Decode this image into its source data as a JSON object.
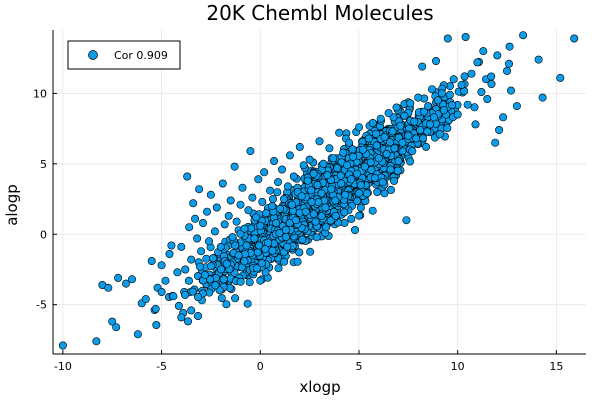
{
  "chart_data": {
    "type": "scatter",
    "title": "20K Chembl Molecules",
    "xlabel": "xlogp",
    "ylabel": "alogp",
    "xlim": [
      -10.5,
      16.5
    ],
    "ylim": [
      -8.5,
      14.5
    ],
    "xticks": [
      -10,
      -5,
      0,
      5,
      10,
      15
    ],
    "yticks": [
      -5,
      0,
      5,
      10
    ],
    "xtick_labels": [
      "-10",
      "-5",
      "0",
      "5",
      "10",
      "15"
    ],
    "ytick_labels": [
      "-5",
      "0",
      "5",
      "10"
    ],
    "grid": true,
    "legend_position": "top-left",
    "marker_color": "#0a9ce8",
    "marker_edge_color": "#000000",
    "series": [
      {
        "name": "Cor 0.909",
        "points": [
          [
            -10.0,
            -7.9
          ],
          [
            -8.3,
            -7.6
          ],
          [
            -8.0,
            -3.6
          ],
          [
            -7.7,
            -3.8
          ],
          [
            -7.5,
            -6.2
          ],
          [
            -7.3,
            -6.6
          ],
          [
            -7.2,
            -3.1
          ],
          [
            -6.8,
            -3.5
          ],
          [
            -6.5,
            -3.2
          ],
          [
            -6.2,
            -7.1
          ],
          [
            -6.0,
            -4.9
          ],
          [
            -5.8,
            -4.6
          ],
          [
            -5.5,
            -1.9
          ],
          [
            -5.3,
            -5.3
          ],
          [
            -5.2,
            -3.8
          ],
          [
            -5.0,
            -4.1
          ],
          [
            -5.0,
            -2.2
          ],
          [
            -4.8,
            -3.3
          ],
          [
            -4.6,
            -1.4
          ],
          [
            -4.5,
            -0.8
          ],
          [
            -4.4,
            -4.4
          ],
          [
            -4.2,
            -2.7
          ],
          [
            -4.0,
            -5.9
          ],
          [
            -4.0,
            -0.9
          ],
          [
            -3.8,
            -2.5
          ],
          [
            -3.7,
            4.1
          ],
          [
            -3.6,
            0.5
          ],
          [
            -3.5,
            -1.8
          ],
          [
            -3.4,
            2.2
          ],
          [
            -3.3,
            1.1
          ],
          [
            -3.2,
            -0.3
          ],
          [
            -3.1,
            3.2
          ],
          [
            -3.0,
            -1.2
          ],
          [
            -2.9,
            0.8
          ],
          [
            -2.8,
            -2.9
          ],
          [
            -2.7,
            1.6
          ],
          [
            -2.6,
            -0.5
          ],
          [
            -2.5,
            2.8
          ],
          [
            -2.4,
            -1.7
          ],
          [
            -2.3,
            0.2
          ],
          [
            -2.2,
            1.9
          ],
          [
            -2.0,
            -0.9
          ],
          [
            -1.9,
            3.6
          ],
          [
            -1.8,
            0.7
          ],
          [
            -1.7,
            -2.1
          ],
          [
            -1.6,
            1.3
          ],
          [
            -1.5,
            2.4
          ],
          [
            -1.4,
            -0.2
          ],
          [
            -1.3,
            4.8
          ],
          [
            -1.2,
            0.9
          ],
          [
            -1.1,
            -1.5
          ],
          [
            -1.0,
            2.1
          ],
          [
            -0.9,
            3.3
          ],
          [
            -0.8,
            0.4
          ],
          [
            -0.7,
            -0.8
          ],
          [
            -0.6,
            1.7
          ],
          [
            -0.5,
            5.9
          ],
          [
            -0.4,
            2.6
          ],
          [
            -0.3,
            -0.3
          ],
          [
            -0.2,
            1.2
          ],
          [
            -0.1,
            3.9
          ],
          [
            0.0,
            0.6
          ],
          [
            0.0,
            -3.3
          ],
          [
            0.1,
            2.3
          ],
          [
            0.2,
            4.4
          ],
          [
            0.3,
            1.5
          ],
          [
            0.4,
            -0.6
          ],
          [
            0.5,
            3.1
          ],
          [
            0.6,
            2.0
          ],
          [
            0.7,
            5.2
          ],
          [
            0.8,
            0.8
          ],
          [
            0.9,
            3.7
          ],
          [
            1.0,
            1.8
          ],
          [
            1.1,
            4.6
          ],
          [
            1.2,
            2.5
          ],
          [
            1.3,
            0.3
          ],
          [
            1.4,
            3.4
          ],
          [
            1.5,
            5.6
          ],
          [
            1.6,
            2.1
          ],
          [
            1.7,
            4.1
          ],
          [
            1.8,
            1.0
          ],
          [
            1.9,
            3.0
          ],
          [
            2.0,
            6.2
          ],
          [
            2.1,
            2.7
          ],
          [
            2.2,
            4.9
          ],
          [
            2.3,
            1.6
          ],
          [
            2.4,
            3.8
          ],
          [
            2.5,
            5.3
          ],
          [
            2.6,
            2.3
          ],
          [
            2.7,
            4.3
          ],
          [
            2.8,
            0.9
          ],
          [
            2.9,
            3.5
          ],
          [
            3.0,
            6.6
          ],
          [
            3.1,
            2.9
          ],
          [
            3.2,
            5.0
          ],
          [
            3.3,
            1.9
          ],
          [
            3.4,
            4.2
          ],
          [
            3.5,
            6.1
          ],
          [
            3.6,
            3.2
          ],
          [
            3.7,
            5.4
          ],
          [
            3.8,
            2.4
          ],
          [
            3.9,
            4.7
          ],
          [
            4.0,
            7.2
          ],
          [
            4.1,
            3.6
          ],
          [
            4.2,
            5.8
          ],
          [
            4.3,
            2.8
          ],
          [
            4.4,
            4.9
          ],
          [
            4.5,
            6.5
          ],
          [
            4.6,
            3.9
          ],
          [
            4.7,
            5.5
          ],
          [
            4.8,
            0.3
          ],
          [
            4.9,
            4.3
          ],
          [
            5.0,
            7.6
          ],
          [
            5.1,
            3.5
          ],
          [
            5.2,
            6.0
          ],
          [
            5.3,
            4.8
          ],
          [
            5.4,
            2.9
          ],
          [
            5.5,
            6.8
          ],
          [
            5.6,
            5.1
          ],
          [
            5.7,
            7.9
          ],
          [
            5.8,
            4.0
          ],
          [
            5.9,
            6.3
          ],
          [
            6.0,
            5.4
          ],
          [
            6.1,
            8.2
          ],
          [
            6.2,
            3.7
          ],
          [
            6.3,
            6.9
          ],
          [
            6.4,
            5.7
          ],
          [
            6.5,
            8.6
          ],
          [
            6.6,
            4.6
          ],
          [
            6.7,
            7.3
          ],
          [
            6.8,
            6.1
          ],
          [
            6.9,
            9.0
          ],
          [
            7.0,
            5.2
          ],
          [
            7.1,
            7.7
          ],
          [
            7.2,
            6.5
          ],
          [
            7.3,
            8.4
          ],
          [
            7.4,
            1.0
          ],
          [
            7.5,
            7.0
          ],
          [
            7.6,
            9.3
          ],
          [
            7.7,
            5.9
          ],
          [
            7.8,
            8.0
          ],
          [
            7.9,
            6.8
          ],
          [
            8.0,
            9.7
          ],
          [
            8.1,
            7.4
          ],
          [
            8.2,
            11.9
          ],
          [
            8.3,
            8.7
          ],
          [
            8.4,
            6.2
          ],
          [
            8.5,
            9.1
          ],
          [
            8.6,
            7.8
          ],
          [
            8.7,
            10.3
          ],
          [
            8.8,
            8.3
          ],
          [
            8.9,
            12.3
          ],
          [
            9.0,
            9.5
          ],
          [
            9.1,
            7.1
          ],
          [
            9.2,
            10.0
          ],
          [
            9.3,
            8.8
          ],
          [
            9.5,
            13.9
          ],
          [
            9.6,
            9.9
          ],
          [
            9.8,
            11.0
          ],
          [
            10.0,
            8.5
          ],
          [
            10.2,
            10.6
          ],
          [
            10.4,
            14.0
          ],
          [
            10.5,
            9.2
          ],
          [
            10.7,
            11.4
          ],
          [
            10.9,
            7.8
          ],
          [
            11.0,
            12.2
          ],
          [
            11.2,
            10.1
          ],
          [
            11.3,
            13.0
          ],
          [
            11.5,
            9.6
          ],
          [
            11.7,
            11.2
          ],
          [
            11.9,
            6.5
          ],
          [
            12.1,
            7.4
          ],
          [
            12.3,
            8.3
          ],
          [
            12.5,
            11.6
          ],
          [
            12.6,
            12.1
          ],
          [
            12.7,
            10.2
          ],
          [
            13.0,
            9.1
          ],
          [
            14.1,
            12.4
          ],
          [
            14.3,
            9.7
          ],
          [
            15.2,
            11.1
          ],
          [
            15.9,
            13.9
          ]
        ]
      }
    ]
  }
}
